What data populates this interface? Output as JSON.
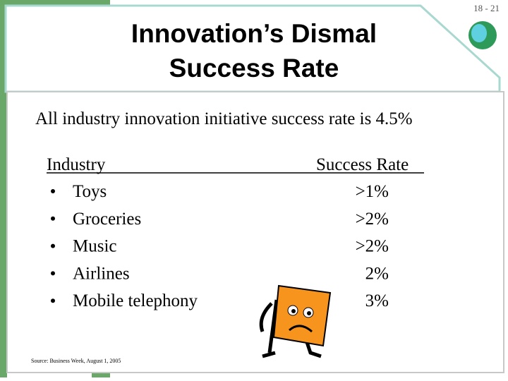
{
  "page_number": "18 - 21",
  "title": [
    "Innovation’s Dismal",
    "Success Rate"
  ],
  "subtitle": "All industry innovation initiative success rate is 4.5%",
  "table": {
    "header": [
      "Industry",
      "Success Rate"
    ],
    "rows": [
      [
        "Toys",
        ">1%"
      ],
      [
        "Groceries",
        ">2%"
      ],
      [
        "Music",
        ">2%"
      ],
      [
        "Airlines",
        "2%"
      ],
      [
        "Mobile telephony",
        "3%"
      ]
    ]
  },
  "source": "Source: Business Week, August 1, 2005"
}
